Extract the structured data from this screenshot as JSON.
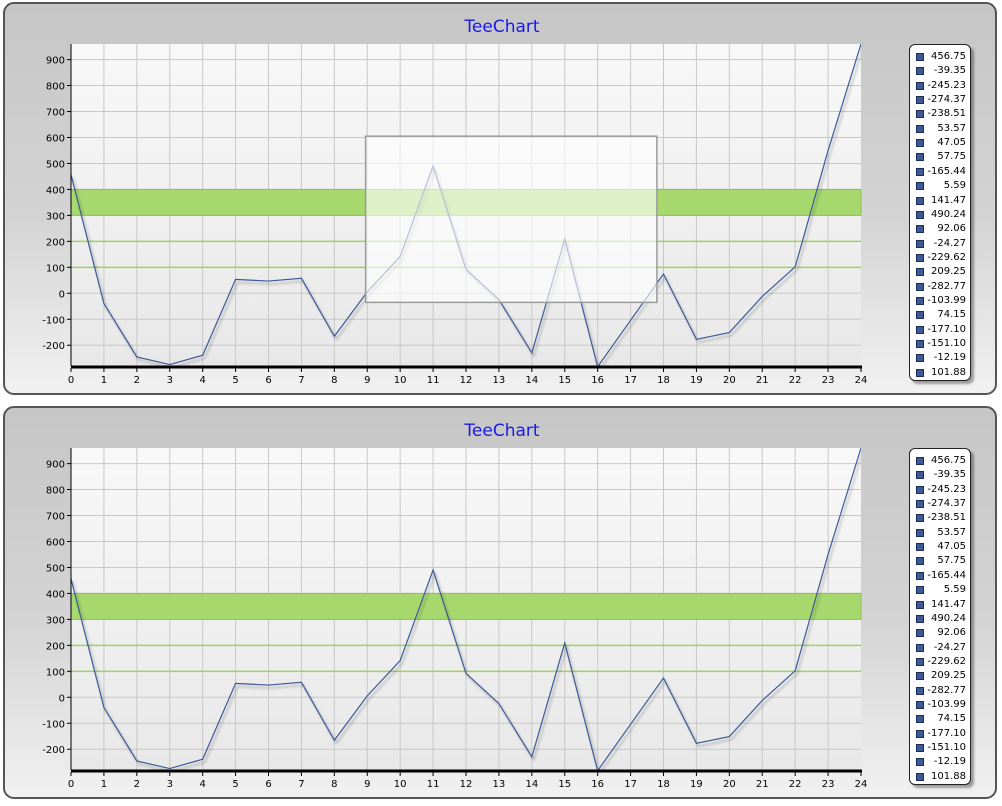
{
  "chart_data": [
    {
      "type": "line",
      "title": "TeeChart",
      "x": [
        0,
        1,
        2,
        3,
        4,
        5,
        6,
        7,
        8,
        9,
        10,
        11,
        12,
        13,
        14,
        15,
        16,
        17,
        18,
        19,
        20,
        21,
        22,
        23,
        24
      ],
      "series": [
        {
          "values": [
            456.75,
            -39.35,
            -245.23,
            -274.37,
            -238.51,
            53.57,
            47.05,
            57.75,
            -165.44,
            5.59,
            141.47,
            490.24,
            92.06,
            -24.27,
            -229.62,
            209.25,
            -282.77,
            -103.99,
            74.15,
            -177.1,
            -151.1,
            -12.19,
            101.88,
            550,
            960
          ],
          "color": "#3d5a96"
        }
      ],
      "legend": [
        "456.75",
        "-39.35",
        "-245.23",
        "-274.37",
        "-238.51",
        "53.57",
        "47.05",
        "57.75",
        "-165.44",
        "5.59",
        "141.47",
        "490.24",
        "92.06",
        "-24.27",
        "-229.62",
        "209.25",
        "-282.77",
        "-103.99",
        "74.15",
        "-177.10",
        "-151.10",
        "-12.19",
        "101.88"
      ],
      "legend_position": "right",
      "xlim": [
        0,
        24
      ],
      "ylim": [
        -280,
        960
      ],
      "yticks": [
        -200,
        -100,
        0,
        100,
        200,
        300,
        400,
        500,
        600,
        700,
        800,
        900
      ],
      "grid": true,
      "color_bands": [
        {
          "from": 300,
          "to": 400,
          "color": "#a6d86e"
        }
      ],
      "color_lines": [
        {
          "value": 100,
          "color": "#9ed35e"
        },
        {
          "value": 200,
          "color": "#9ed35e"
        }
      ],
      "zoom_rectangle": {
        "x_from": 8.95,
        "x_to": 17.8,
        "y_from": -35,
        "y_to": 605
      }
    },
    {
      "type": "line",
      "title": "TeeChart",
      "x": [
        0,
        1,
        2,
        3,
        4,
        5,
        6,
        7,
        8,
        9,
        10,
        11,
        12,
        13,
        14,
        15,
        16,
        17,
        18,
        19,
        20,
        21,
        22,
        23,
        24
      ],
      "series": [
        {
          "values": [
            456.75,
            -39.35,
            -245.23,
            -274.37,
            -238.51,
            53.57,
            47.05,
            57.75,
            -165.44,
            5.59,
            141.47,
            490.24,
            92.06,
            -24.27,
            -229.62,
            209.25,
            -282.77,
            -103.99,
            74.15,
            -177.1,
            -151.1,
            -12.19,
            101.88,
            550,
            960
          ],
          "color": "#3d5a96"
        }
      ],
      "legend": [
        "456.75",
        "-39.35",
        "-245.23",
        "-274.37",
        "-238.51",
        "53.57",
        "47.05",
        "57.75",
        "-165.44",
        "5.59",
        "141.47",
        "490.24",
        "92.06",
        "-24.27",
        "-229.62",
        "209.25",
        "-282.77",
        "-103.99",
        "74.15",
        "-177.10",
        "-151.10",
        "-12.19",
        "101.88"
      ],
      "legend_position": "right",
      "xlim": [
        0,
        24
      ],
      "ylim": [
        -280,
        960
      ],
      "yticks": [
        -200,
        -100,
        0,
        100,
        200,
        300,
        400,
        500,
        600,
        700,
        800,
        900
      ],
      "grid": true,
      "color_bands": [
        {
          "from": 300,
          "to": 400,
          "color": "#a6d86e"
        }
      ],
      "color_lines": [
        {
          "value": 100,
          "color": "#9ed35e"
        },
        {
          "value": 200,
          "color": "#9ed35e"
        }
      ]
    }
  ]
}
